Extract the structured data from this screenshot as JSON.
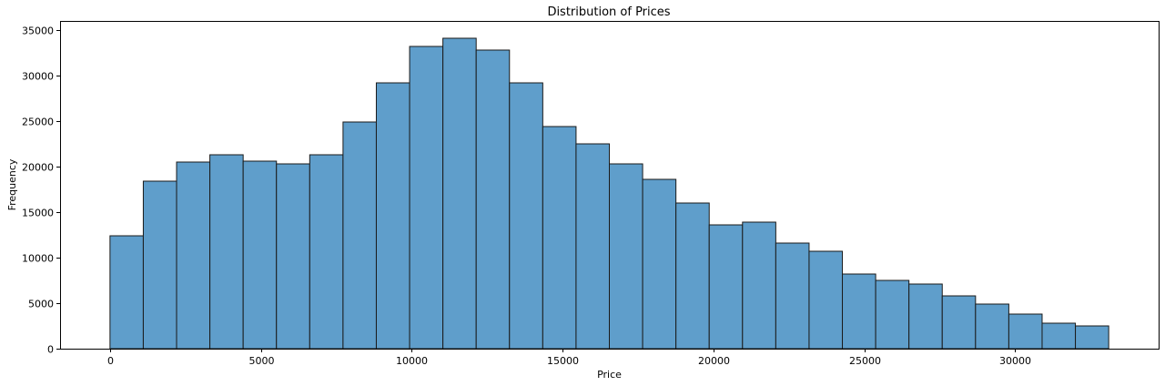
{
  "chart_data": {
    "type": "bar",
    "title": "Distribution of Prices",
    "xlabel": "Price",
    "ylabel": "Frequency",
    "bin_start": 0,
    "bin_end": 33100,
    "xlim": [
      -1655,
      34755
    ],
    "ylim": [
      0,
      36000
    ],
    "xticks": [
      0,
      5000,
      10000,
      15000,
      20000,
      25000,
      30000
    ],
    "yticks": [
      0,
      5000,
      10000,
      15000,
      20000,
      25000,
      30000,
      35000
    ],
    "values": [
      12400,
      18400,
      20500,
      21300,
      20600,
      20300,
      21300,
      24900,
      29200,
      33200,
      34100,
      32800,
      29200,
      24400,
      22500,
      20300,
      18600,
      16000,
      13600,
      13900,
      11600,
      10700,
      8200,
      7500,
      7100,
      5800,
      4900,
      3800,
      2800,
      2500
    ],
    "bar_color": "#5f9ecb",
    "edge_color": "#1a1a1a",
    "grid": false,
    "legend": "none"
  }
}
